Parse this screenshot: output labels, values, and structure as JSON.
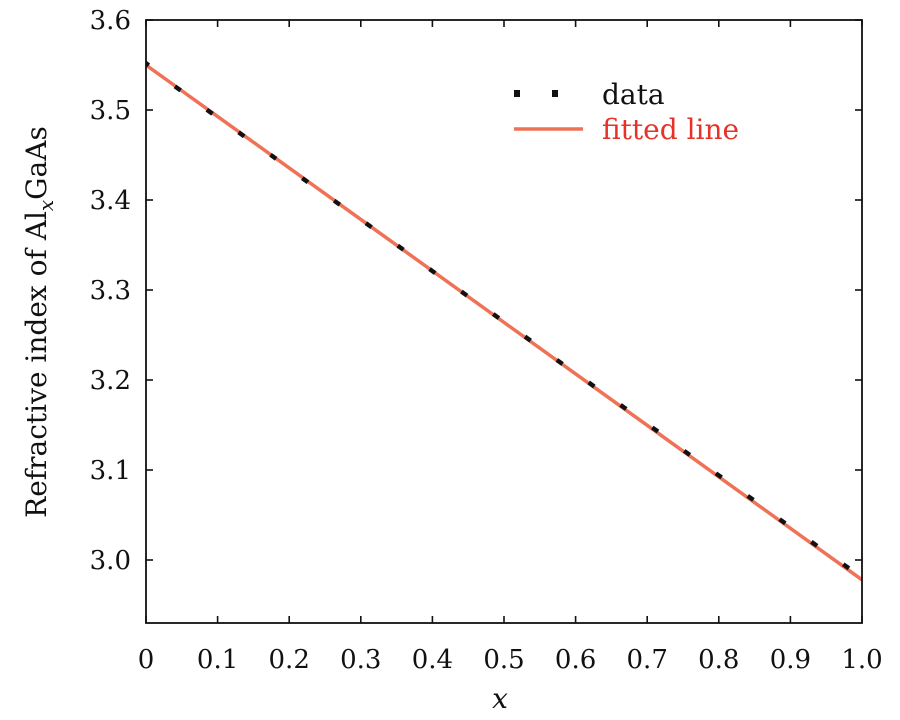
{
  "chart_data": {
    "type": "line",
    "xlabel": "x",
    "ylabel": {
      "main": "Refractive index of Al",
      "subscript": "x",
      "suffix": "GaAs"
    },
    "xlim": [
      0,
      1.0
    ],
    "ylim": [
      2.93,
      3.6
    ],
    "x_ticks": [
      0,
      0.1,
      0.2,
      0.3,
      0.4,
      0.5,
      0.6,
      0.7,
      0.8,
      0.9,
      1.0
    ],
    "x_tick_labels": [
      "0",
      "0.1",
      "0.2",
      "0.3",
      "0.4",
      "0.5",
      "0.6",
      "0.7",
      "0.8",
      "0.9",
      "1.0"
    ],
    "y_ticks": [
      3.0,
      3.1,
      3.2,
      3.3,
      3.4,
      3.5,
      3.6
    ],
    "y_tick_labels": [
      "3.0",
      "3.1",
      "3.2",
      "3.3",
      "3.4",
      "3.5",
      "3.6"
    ],
    "grid": false,
    "legend_position": "top-right",
    "series": [
      {
        "name": "data",
        "style": "markers",
        "color": "#111111",
        "x": [
          0,
          0.0444,
          0.0889,
          0.1333,
          0.1778,
          0.2222,
          0.2667,
          0.3111,
          0.3556,
          0.4,
          0.4444,
          0.4889,
          0.5333,
          0.5778,
          0.6222,
          0.6667,
          0.7111,
          0.7556,
          0.8,
          0.8444,
          0.8889,
          0.9333,
          0.9778
        ],
        "y": [
          3.552,
          3.524,
          3.498,
          3.473,
          3.448,
          3.422,
          3.397,
          3.372,
          3.347,
          3.321,
          3.296,
          3.271,
          3.246,
          3.22,
          3.195,
          3.17,
          3.145,
          3.119,
          3.094,
          3.069,
          3.043,
          3.018,
          2.993
        ]
      },
      {
        "name": "fitted line",
        "style": "line",
        "color": "#ef7156",
        "legend_text_color": "#e5332a",
        "x": [
          0,
          1.0
        ],
        "y": [
          3.55,
          2.978
        ]
      }
    ]
  }
}
